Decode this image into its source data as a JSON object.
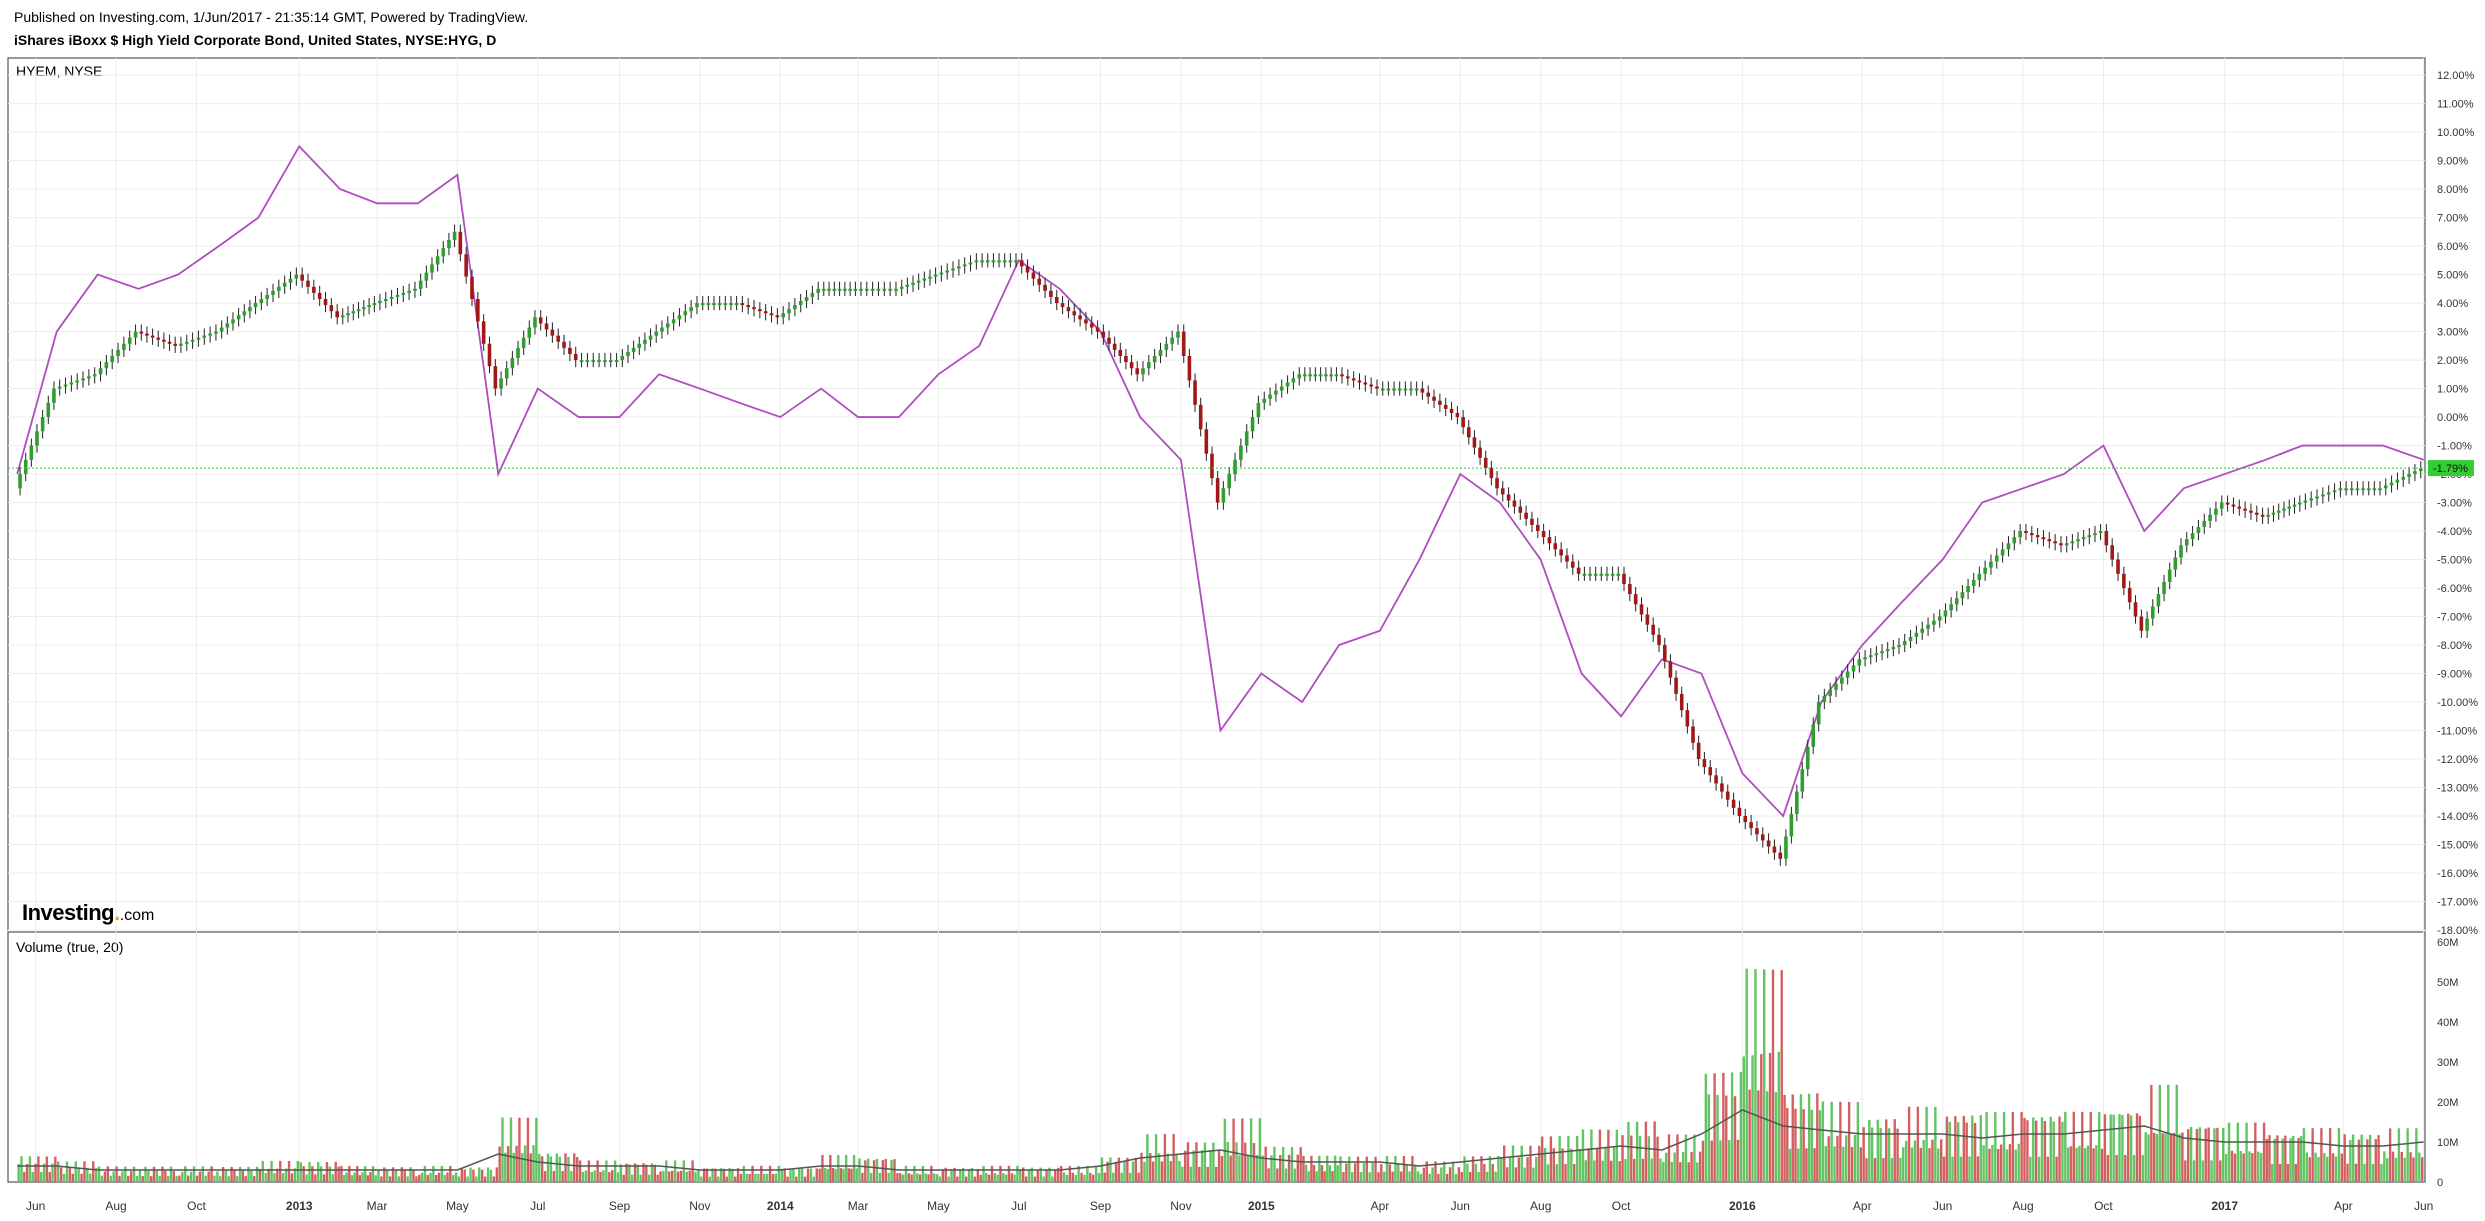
{
  "header": {
    "published": "Published on Investing.com, 1/Jun/2017 - 21:35:14 GMT, Powered by TradingView.",
    "symbol": "iShares iBoxx $ High Yield Corporate Bond, United States, NYSE:HYG, D"
  },
  "logo": {
    "brand": "Investing",
    "suffix": ".com"
  },
  "colors": {
    "up": "#2e9e2e",
    "down": "#a01818",
    "compare": "#b04cc0",
    "vol_up": "#62c462",
    "vol_down": "#d26060",
    "vol_ma": "#555555",
    "last_price": "#33cc33"
  },
  "chart_data": [
    {
      "type": "line",
      "pane_label": "HYEM, NYSE",
      "y_axis_unit": "%",
      "ylim": [
        -18,
        12.6
      ],
      "y_ticks": [
        "12.00%",
        "11.00%",
        "10.00%",
        "9.00%",
        "8.00%",
        "7.00%",
        "6.00%",
        "5.00%",
        "4.00%",
        "3.00%",
        "2.00%",
        "1.00%",
        "0.00%",
        "-1.00%",
        "-2.00%",
        "-3.00%",
        "-4.00%",
        "-5.00%",
        "-6.00%",
        "-7.00%",
        "-8.00%",
        "-9.00%",
        "-10.00%",
        "-11.00%",
        "-12.00%",
        "-13.00%",
        "-14.00%",
        "-15.00%",
        "-16.00%",
        "-17.00%",
        "-18.00%"
      ],
      "x_ticks": [
        "Jun",
        "Aug",
        "Oct",
        "2013",
        "Mar",
        "May",
        "Jul",
        "Sep",
        "Nov",
        "2014",
        "Mar",
        "May",
        "Jul",
        "Sep",
        "Nov",
        "2015",
        "Apr",
        "Jun",
        "Aug",
        "Oct",
        "2016",
        "Apr",
        "Jun",
        "Aug",
        "Oct",
        "2017",
        "Apr",
        "Jun"
      ],
      "last_value_label": "-1.79%",
      "last_value": -1.79,
      "grid": true,
      "series": [
        {
          "kind": "candlestick",
          "x": [
            "2012-06-01",
            "2012-07-01",
            "2012-08-01",
            "2012-09-01",
            "2012-10-01",
            "2012-11-01",
            "2012-12-01",
            "2013-01-01",
            "2013-02-01",
            "2013-03-01",
            "2013-04-01",
            "2013-05-01",
            "2013-06-01",
            "2013-07-01",
            "2013-08-01",
            "2013-09-01",
            "2013-10-01",
            "2013-11-01",
            "2013-12-01",
            "2014-01-01",
            "2014-02-01",
            "2014-03-01",
            "2014-04-01",
            "2014-05-01",
            "2014-06-01",
            "2014-07-01",
            "2014-08-01",
            "2014-09-01",
            "2014-10-01",
            "2014-11-01",
            "2014-12-01",
            "2015-01-01",
            "2015-02-01",
            "2015-03-01",
            "2015-04-01",
            "2015-05-01",
            "2015-06-01",
            "2015-07-01",
            "2015-08-01",
            "2015-09-01",
            "2015-10-01",
            "2015-11-01",
            "2015-12-01",
            "2016-01-01",
            "2016-02-01",
            "2016-03-01",
            "2016-04-01",
            "2016-05-01",
            "2016-06-01",
            "2016-07-01",
            "2016-08-01",
            "2016-09-01",
            "2016-10-01",
            "2016-11-01",
            "2016-12-01",
            "2017-01-01",
            "2017-02-01",
            "2017-03-01",
            "2017-04-01",
            "2017-05-01",
            "2017-06-01"
          ],
          "values": [
            -2.5,
            1.0,
            1.5,
            3.0,
            2.5,
            3.0,
            4.0,
            5.0,
            3.5,
            4.0,
            4.5,
            6.5,
            1.0,
            3.5,
            2.0,
            2.0,
            3.0,
            4.0,
            4.0,
            3.5,
            4.5,
            4.5,
            4.5,
            5.0,
            5.5,
            5.5,
            4.0,
            3.0,
            1.5,
            3.0,
            -3.0,
            0.5,
            1.5,
            1.5,
            1.0,
            1.0,
            0.0,
            -2.5,
            -4.0,
            -5.5,
            -5.5,
            -8.0,
            -12.0,
            -14.0,
            -15.5,
            -10.0,
            -8.5,
            -8.0,
            -7.0,
            -5.5,
            -4.0,
            -4.5,
            -4.0,
            -7.5,
            -4.5,
            -3.0,
            -3.5,
            -3.0,
            -2.5,
            -2.5,
            -1.8
          ]
        },
        {
          "kind": "line",
          "name": "HYEM",
          "x": [
            "2012-06-01",
            "2012-07-01",
            "2012-08-01",
            "2012-09-01",
            "2012-10-01",
            "2012-11-01",
            "2012-12-01",
            "2013-01-01",
            "2013-02-01",
            "2013-03-01",
            "2013-04-01",
            "2013-05-01",
            "2013-06-01",
            "2013-07-01",
            "2013-08-01",
            "2013-09-01",
            "2013-10-01",
            "2013-11-01",
            "2013-12-01",
            "2014-01-01",
            "2014-02-01",
            "2014-03-01",
            "2014-04-01",
            "2014-05-01",
            "2014-06-01",
            "2014-07-01",
            "2014-08-01",
            "2014-09-01",
            "2014-10-01",
            "2014-11-01",
            "2014-12-01",
            "2015-01-01",
            "2015-02-01",
            "2015-03-01",
            "2015-04-01",
            "2015-05-01",
            "2015-06-01",
            "2015-07-01",
            "2015-08-01",
            "2015-09-01",
            "2015-10-01",
            "2015-11-01",
            "2015-12-01",
            "2016-01-01",
            "2016-02-01",
            "2016-03-01",
            "2016-04-01",
            "2016-05-01",
            "2016-06-01",
            "2016-07-01",
            "2016-08-01",
            "2016-09-01",
            "2016-10-01",
            "2016-11-01",
            "2016-12-01",
            "2017-01-01",
            "2017-02-01",
            "2017-03-01",
            "2017-04-01",
            "2017-05-01",
            "2017-06-01"
          ],
          "values": [
            -2.0,
            3.0,
            5.0,
            4.5,
            5.0,
            6.0,
            7.0,
            9.5,
            8.0,
            7.5,
            7.5,
            8.5,
            -2.0,
            1.0,
            0.0,
            0.0,
            1.5,
            1.0,
            0.5,
            0.0,
            1.0,
            0.0,
            0.0,
            1.5,
            2.5,
            5.5,
            4.5,
            3.0,
            0.0,
            -1.5,
            -11.0,
            -9.0,
            -10.0,
            -8.0,
            -7.5,
            -5.0,
            -2.0,
            -3.0,
            -5.0,
            -9.0,
            -10.5,
            -8.5,
            -9.0,
            -12.5,
            -14.0,
            -10.0,
            -8.0,
            -6.5,
            -5.0,
            -3.0,
            -2.5,
            -2.0,
            -1.0,
            -4.0,
            -2.5,
            -2.0,
            -1.5,
            -1.0,
            -1.0,
            -1.0,
            -1.5
          ]
        }
      ]
    },
    {
      "type": "bar",
      "pane_label": "Volume (true, 20)",
      "ylim": [
        0,
        60
      ],
      "y_ticks": [
        "60M",
        "50M",
        "40M",
        "30M",
        "20M",
        "10M",
        "0"
      ],
      "x": [
        "2012-06-01",
        "2012-07-01",
        "2012-08-01",
        "2012-09-01",
        "2012-10-01",
        "2012-11-01",
        "2012-12-01",
        "2013-01-01",
        "2013-02-01",
        "2013-03-01",
        "2013-04-01",
        "2013-05-01",
        "2013-06-01",
        "2013-07-01",
        "2013-08-01",
        "2013-09-01",
        "2013-10-01",
        "2013-11-01",
        "2013-12-01",
        "2014-01-01",
        "2014-02-01",
        "2014-03-01",
        "2014-04-01",
        "2014-05-01",
        "2014-06-01",
        "2014-07-01",
        "2014-08-01",
        "2014-09-01",
        "2014-10-01",
        "2014-11-01",
        "2014-12-01",
        "2015-01-01",
        "2015-02-01",
        "2015-03-01",
        "2015-04-01",
        "2015-05-01",
        "2015-06-01",
        "2015-07-01",
        "2015-08-01",
        "2015-09-01",
        "2015-10-01",
        "2015-11-01",
        "2015-12-01",
        "2016-01-01",
        "2016-02-01",
        "2016-03-01",
        "2016-04-01",
        "2016-05-01",
        "2016-06-01",
        "2016-07-01",
        "2016-08-01",
        "2016-09-01",
        "2016-10-01",
        "2016-11-01",
        "2016-12-01",
        "2017-01-01",
        "2017-02-01",
        "2017-03-01",
        "2017-04-01",
        "2017-05-01",
        "2017-06-01"
      ],
      "series": [
        {
          "name": "volume_ma",
          "values": [
            4,
            4,
            3,
            3,
            3,
            3,
            3,
            3,
            3,
            3,
            3,
            3,
            7,
            5,
            4,
            4,
            4,
            3,
            3,
            3,
            4,
            4,
            3,
            3,
            3,
            3,
            3,
            4,
            6,
            7,
            8,
            6,
            5,
            5,
            5,
            4,
            5,
            6,
            7,
            8,
            9,
            8,
            12,
            18,
            14,
            13,
            12,
            12,
            12,
            11,
            12,
            12,
            13,
            14,
            11,
            10,
            10,
            10,
            9,
            9,
            10
          ]
        },
        {
          "name": "volume",
          "values": [
            5,
            4,
            3,
            3,
            3,
            3,
            4,
            4,
            3,
            3,
            3,
            3,
            12,
            6,
            4,
            4,
            4,
            3,
            3,
            3,
            5,
            5,
            3,
            3,
            3,
            3,
            3,
            5,
            9,
            8,
            12,
            7,
            5,
            5,
            5,
            4,
            5,
            7,
            9,
            10,
            12,
            9,
            22,
            40,
            18,
            15,
            13,
            14,
            14,
            13,
            14,
            13,
            15,
            18,
            12,
            11,
            10,
            10,
            10,
            10,
            10
          ]
        }
      ]
    }
  ]
}
